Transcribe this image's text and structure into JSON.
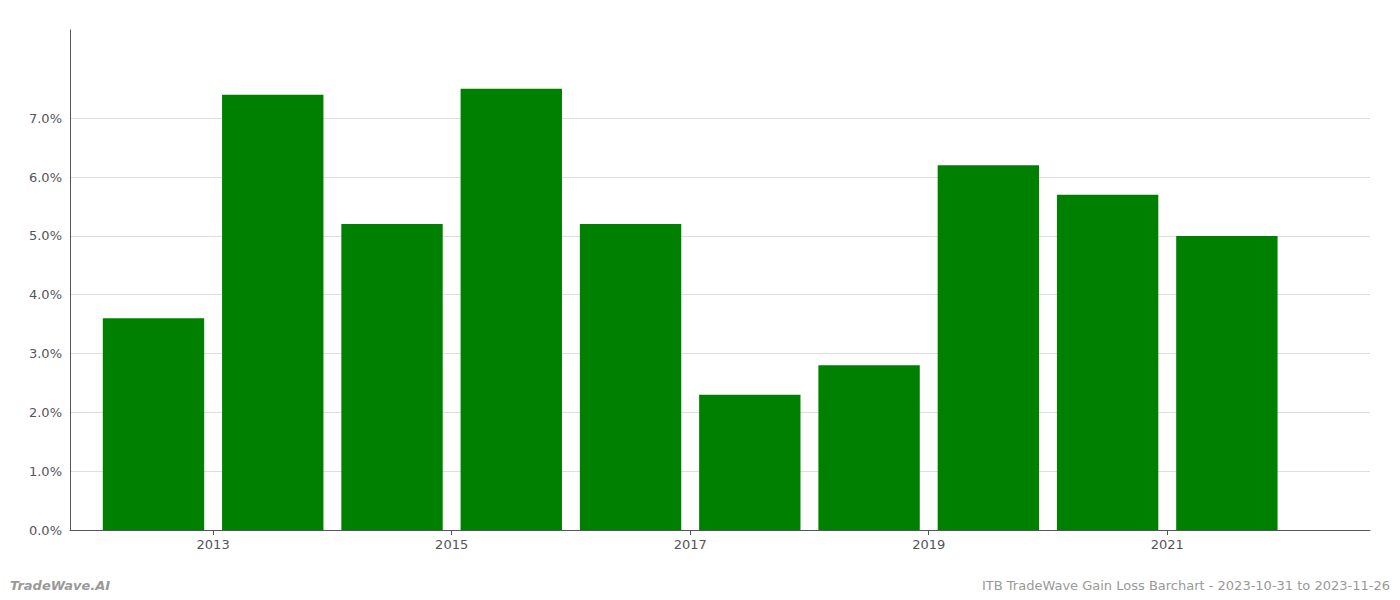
{
  "chart_data": {
    "type": "bar",
    "x": [
      2013,
      2014,
      2015,
      2016,
      2017,
      2018,
      2019,
      2020,
      2021,
      2022
    ],
    "values": [
      0.036,
      0.074,
      0.052,
      0.075,
      0.052,
      0.023,
      0.028,
      0.062,
      0.057,
      0.05
    ],
    "color": "#008000",
    "xlim": [
      2012.3,
      2023.2
    ],
    "xticks": [
      {
        "value": 2013.5,
        "label": "2013"
      },
      {
        "value": 2015.5,
        "label": "2015"
      },
      {
        "value": 2017.5,
        "label": "2017"
      },
      {
        "value": 2019.5,
        "label": "2019"
      },
      {
        "value": 2021.5,
        "label": "2021"
      }
    ],
    "ylim": [
      0,
      0.085
    ],
    "yticks": [
      {
        "value": 0,
        "label": "0.0%"
      },
      {
        "value": 0.01,
        "label": "1.0%"
      },
      {
        "value": 0.02,
        "label": "2.0%"
      },
      {
        "value": 0.03,
        "label": "3.0%"
      },
      {
        "value": 0.04,
        "label": "4.0%"
      },
      {
        "value": 0.05,
        "label": "5.0%"
      },
      {
        "value": 0.06,
        "label": "6.0%"
      },
      {
        "value": 0.07,
        "label": "7.0%"
      }
    ],
    "grid": true,
    "annotations": [
      "TradeWave.AI",
      "ITB TradeWave Gain Loss Barchart - 2023-10-31 to 2023-11-26"
    ]
  }
}
